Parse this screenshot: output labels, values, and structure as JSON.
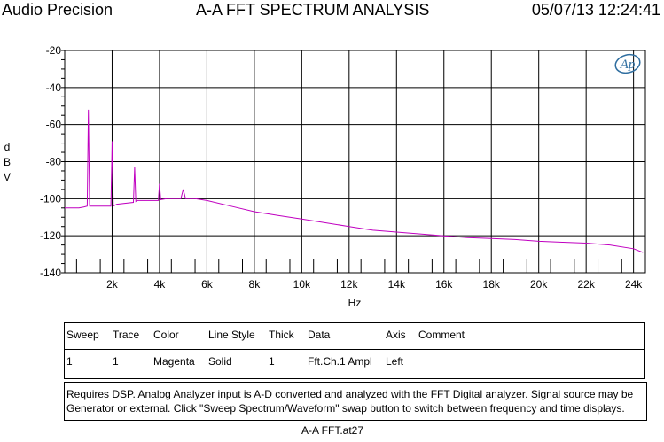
{
  "header": {
    "brand": "Audio Precision",
    "title": "A-A FFT SPECTRUM ANALYSIS",
    "timestamp": "05/07/13 12:24:41"
  },
  "logo_icon": "ap-logo-icon",
  "chart_data": {
    "type": "line",
    "xlabel": "Hz",
    "ylabel": "d B V",
    "xlim": [
      0,
      24500
    ],
    "ylim": [
      -140,
      -20
    ],
    "x_ticks": [
      2000,
      4000,
      6000,
      8000,
      10000,
      12000,
      14000,
      16000,
      18000,
      20000,
      22000,
      24000
    ],
    "x_tick_labels": [
      "2k",
      "4k",
      "6k",
      "8k",
      "10k",
      "12k",
      "14k",
      "16k",
      "18k",
      "20k",
      "22k",
      "24k"
    ],
    "y_ticks": [
      -140,
      -120,
      -100,
      -80,
      -60,
      -40,
      -20
    ],
    "y_tick_labels": [
      "-140",
      "-120",
      "-100",
      "-80",
      "-60",
      "-40",
      "-20"
    ],
    "grid": true,
    "series": [
      {
        "color": "#c000c0",
        "x": [
          0,
          600,
          800,
          950,
          1000,
          1050,
          1200,
          1800,
          1950,
          2000,
          2050,
          2200,
          2900,
          2950,
          3000,
          3050,
          3200,
          3600,
          3950,
          4000,
          4050,
          4300,
          4900,
          5000,
          5100,
          5500,
          6000,
          7000,
          8000,
          9000,
          10000,
          11000,
          12000,
          13000,
          14000,
          15000,
          16000,
          17000,
          18000,
          19000,
          20000,
          21000,
          22000,
          23000,
          24000,
          24400
        ],
        "y": [
          -105,
          -105,
          -104.5,
          -104,
          -52,
          -104,
          -104,
          -104,
          -104,
          -69,
          -104,
          -103,
          -102,
          -83,
          -101.5,
          -101,
          -101,
          -101,
          -101,
          -92,
          -100.5,
          -100,
          -100,
          -95,
          -100,
          -100,
          -101,
          -104,
          -107,
          -109,
          -111,
          -113,
          -115,
          -117,
          -118,
          -119,
          -120,
          -121,
          -121.5,
          -122,
          -123,
          -123.5,
          -124,
          -125,
          -127,
          -129
        ]
      }
    ]
  },
  "legend_table": {
    "headers": [
      "Sweep",
      "Trace",
      "Color",
      "Line Style",
      "Thick",
      "Data",
      "Axis",
      "Comment"
    ],
    "rows": [
      [
        "1",
        "1",
        "Magenta",
        "Solid",
        "1",
        "Fft.Ch.1 Ampl",
        "Left",
        ""
      ]
    ]
  },
  "note": {
    "line1": "Requires DSP.  Analog Analyzer input is A-D converted and analyzed with the FFT Digital analyzer.  Signal source may be",
    "line2": "Generator or external.  Click \"Sweep Spectrum/Waveform\" swap button to switch between frequency and time displays."
  },
  "footer": "A-A FFT.at27"
}
